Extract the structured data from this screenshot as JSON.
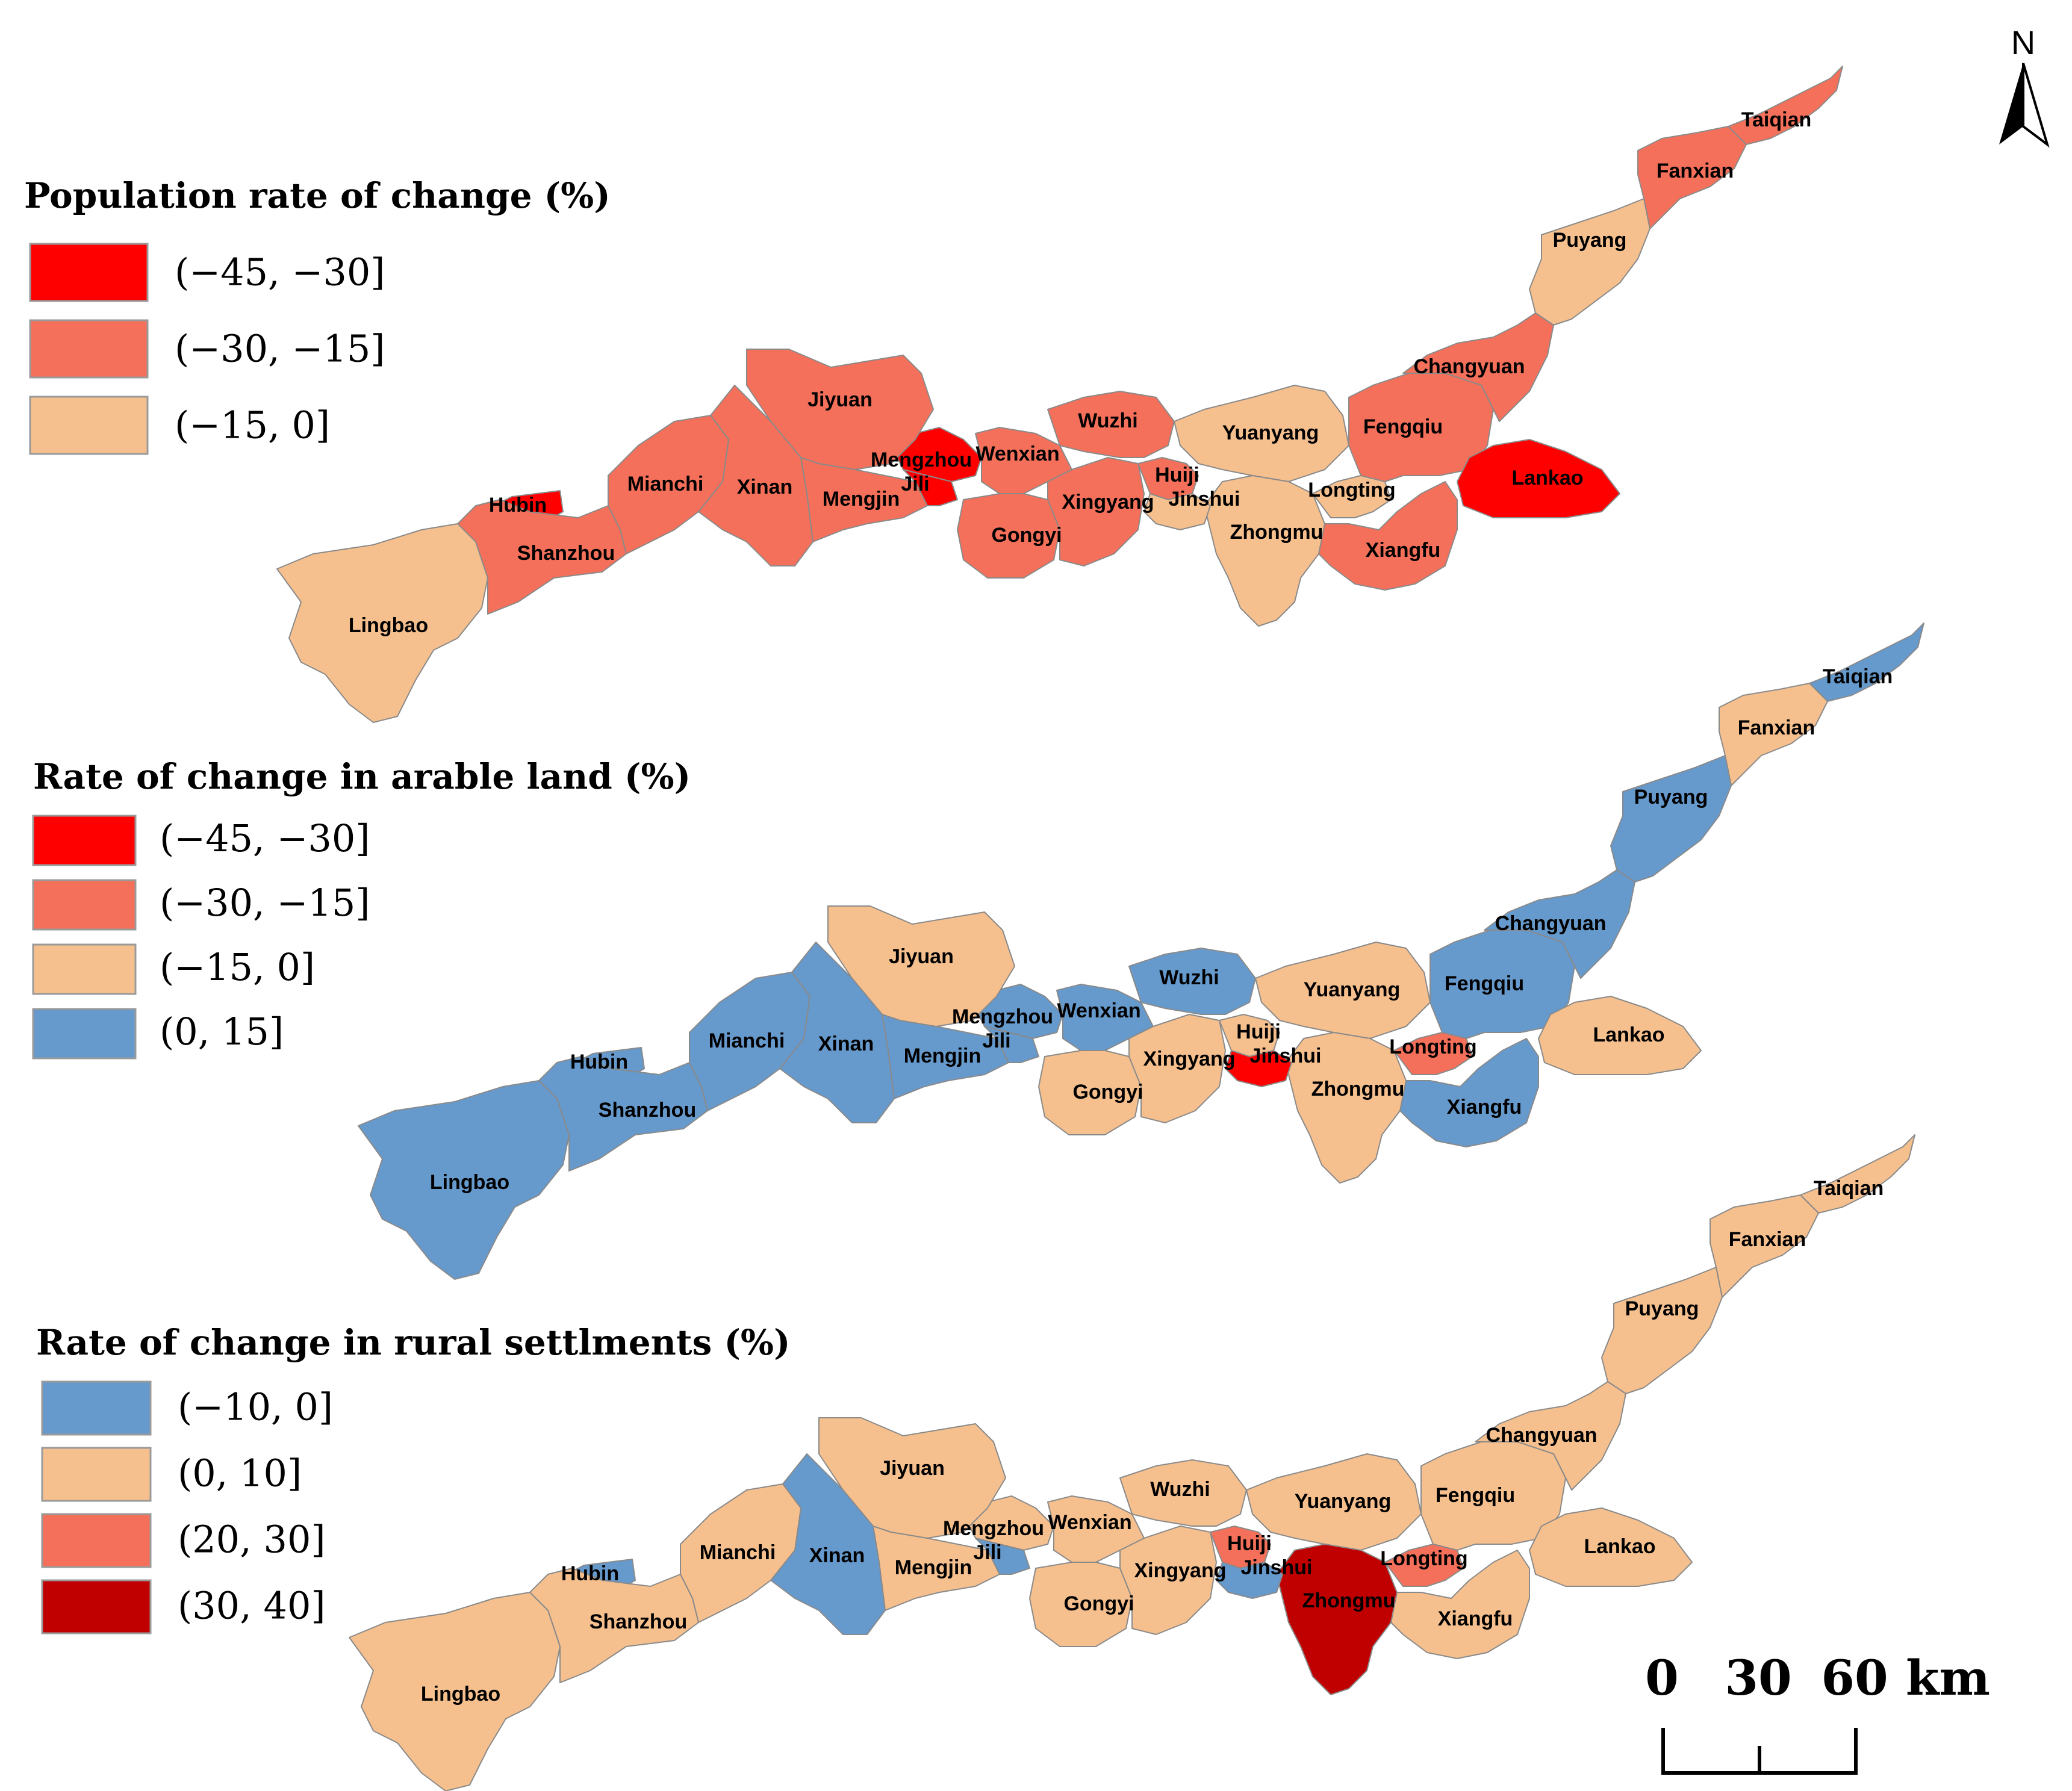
{
  "north_label": "N",
  "colors": {
    "dark_red": "#ff0000",
    "mid_red": "#f4705a",
    "light_orange": "#f6c08e",
    "blue": "#6699cc",
    "deep_red": "#c00000"
  },
  "counties": [
    "Taiqian",
    "Fanxian",
    "Puyang",
    "Changyuan",
    "Fengqiu",
    "Lankao",
    "Yuanyang",
    "Longting",
    "Xiangfu",
    "Zhongmu",
    "Huiji",
    "Jinshui",
    "Xingyang",
    "Gongyi",
    "Wuzhi",
    "Wenxian",
    "Mengzhou",
    "Jili",
    "Mengjin",
    "Jiyuan",
    "Xinan",
    "Mianchi",
    "Hubin",
    "Shanzhou",
    "Lingbao"
  ],
  "maps": [
    {
      "title": "Population rate of change (%)",
      "legend": [
        {
          "label": "(−45, −30]",
          "color": "#ff0000"
        },
        {
          "label": "(−30, −15]",
          "color": "#f4705a"
        },
        {
          "label": "(−15, 0]",
          "color": "#f6c08e"
        }
      ],
      "classes": {
        "Taiqian": 1,
        "Fanxian": 1,
        "Puyang": 2,
        "Changyuan": 1,
        "Fengqiu": 1,
        "Lankao": 0,
        "Yuanyang": 2,
        "Longting": 2,
        "Xiangfu": 1,
        "Zhongmu": 2,
        "Huiji": 1,
        "Jinshui": 2,
        "Xingyang": 1,
        "Gongyi": 1,
        "Wuzhi": 1,
        "Wenxian": 1,
        "Mengzhou": 0,
        "Jili": 0,
        "Mengjin": 1,
        "Jiyuan": 1,
        "Xinan": 1,
        "Mianchi": 1,
        "Hubin": 0,
        "Shanzhou": 1,
        "Lingbao": 2
      }
    },
    {
      "title": "Rate of change in arable land (%)",
      "legend": [
        {
          "label": "(−45, −30]",
          "color": "#ff0000"
        },
        {
          "label": "(−30, −15]",
          "color": "#f4705a"
        },
        {
          "label": "(−15, 0]",
          "color": "#f6c08e"
        },
        {
          "label": "(0, 15]",
          "color": "#6699cc"
        }
      ],
      "classes": {
        "Taiqian": 3,
        "Fanxian": 2,
        "Puyang": 3,
        "Changyuan": 3,
        "Fengqiu": 3,
        "Lankao": 2,
        "Yuanyang": 2,
        "Longting": 1,
        "Xiangfu": 3,
        "Zhongmu": 2,
        "Huiji": 2,
        "Jinshui": 0,
        "Xingyang": 2,
        "Gongyi": 2,
        "Wuzhi": 3,
        "Wenxian": 3,
        "Mengzhou": 3,
        "Jili": 3,
        "Mengjin": 3,
        "Jiyuan": 2,
        "Xinan": 3,
        "Mianchi": 3,
        "Hubin": 3,
        "Shanzhou": 3,
        "Lingbao": 3
      }
    },
    {
      "title": "Rate of change in rural settlments  (%)",
      "legend": [
        {
          "label": "(−10, 0]",
          "color": "#6699cc"
        },
        {
          "label": "(0, 10]",
          "color": "#f6c08e"
        },
        {
          "label": "(20, 30]",
          "color": "#f4705a"
        },
        {
          "label": "(30, 40]",
          "color": "#c00000"
        }
      ],
      "classes": {
        "Taiqian": 1,
        "Fanxian": 1,
        "Puyang": 1,
        "Changyuan": 1,
        "Fengqiu": 1,
        "Lankao": 1,
        "Yuanyang": 1,
        "Longting": 2,
        "Xiangfu": 1,
        "Zhongmu": 3,
        "Huiji": 2,
        "Jinshui": 0,
        "Xingyang": 1,
        "Gongyi": 1,
        "Wuzhi": 1,
        "Wenxian": 1,
        "Mengzhou": 1,
        "Jili": 0,
        "Mengjin": 1,
        "Jiyuan": 1,
        "Xinan": 0,
        "Mianchi": 1,
        "Hubin": 0,
        "Shanzhou": 1,
        "Lingbao": 1
      }
    }
  ],
  "scale_bar": {
    "ticks": [
      "0",
      "30",
      "60"
    ],
    "unit": "km"
  }
}
